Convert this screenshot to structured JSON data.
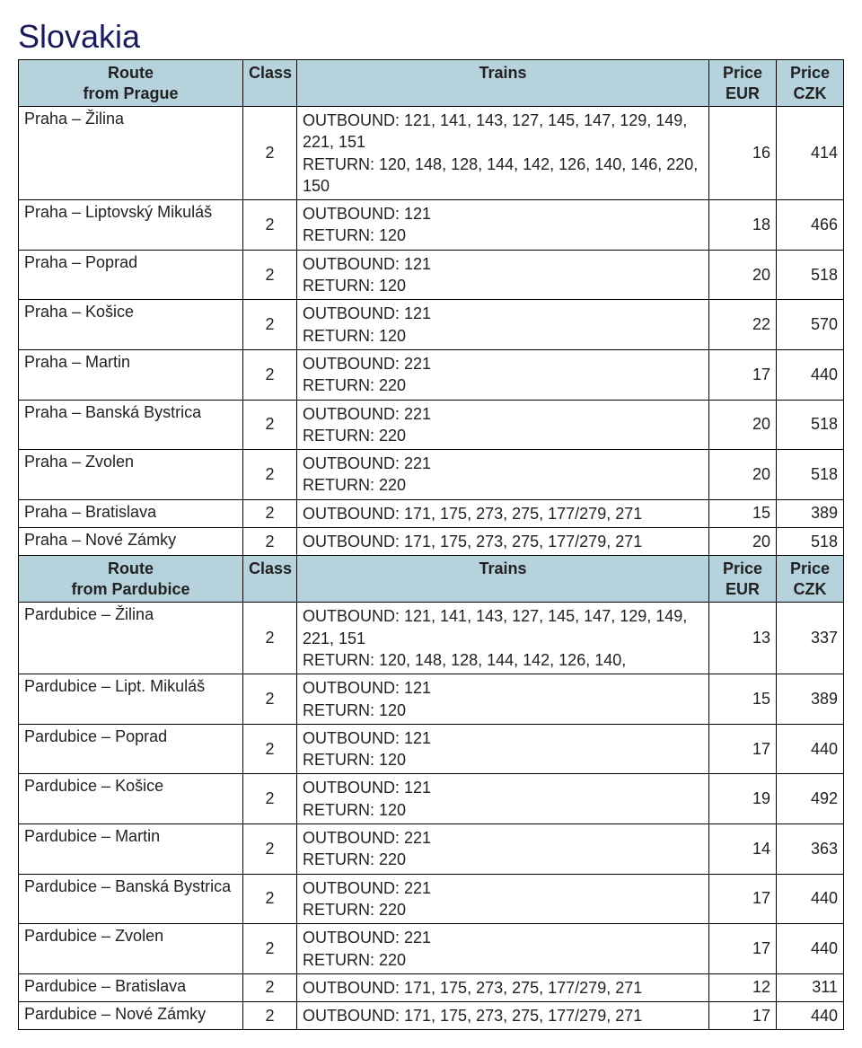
{
  "title": "Slovakia",
  "colors": {
    "header_bg": "#b6d3dd",
    "border": "#000000",
    "title_color": "#1a1a5c",
    "text_color": "#222222",
    "background": "#ffffff"
  },
  "sections": [
    {
      "header": {
        "route": "Route\nfrom Prague",
        "class": "Class",
        "trains": "Trains",
        "eur": "Price\nEUR",
        "czk": "Price\nCZK"
      },
      "rows": [
        {
          "route": "Praha – Žilina",
          "class": "2",
          "trains": "OUTBOUND: 121, 141, 143, 127, 145, 147, 129, 149, 221, 151\nRETURN: 120, 148, 128, 144, 142, 126, 140, 146, 220, 150",
          "eur": "16",
          "czk": "414"
        },
        {
          "route": "Praha – Liptovský Mikuláš",
          "class": "2",
          "trains": "OUTBOUND: 121\nRETURN: 120",
          "eur": "18",
          "czk": "466"
        },
        {
          "route": "Praha – Poprad",
          "class": "2",
          "trains": "OUTBOUND: 121\nRETURN: 120",
          "eur": "20",
          "czk": "518"
        },
        {
          "route": "Praha – Košice",
          "class": "2",
          "trains": "OUTBOUND: 121\nRETURN: 120",
          "eur": "22",
          "czk": "570"
        },
        {
          "route": "Praha – Martin",
          "class": "2",
          "trains": "OUTBOUND: 221\nRETURN: 220",
          "eur": "17",
          "czk": "440"
        },
        {
          "route": "Praha – Banská Bystrica",
          "class": "2",
          "trains": "OUTBOUND: 221\nRETURN: 220",
          "eur": "20",
          "czk": "518"
        },
        {
          "route": "Praha – Zvolen",
          "class": "2",
          "trains": "OUTBOUND: 221\nRETURN: 220",
          "eur": "20",
          "czk": "518"
        },
        {
          "route": "Praha – Bratislava",
          "class": "2",
          "trains": "OUTBOUND: 171, 175, 273, 275, 177/279, 271",
          "eur": "15",
          "czk": "389"
        },
        {
          "route": "Praha – Nové Zámky",
          "class": "2",
          "trains": "OUTBOUND: 171, 175, 273, 275, 177/279, 271",
          "eur": "20",
          "czk": "518"
        }
      ]
    },
    {
      "header": {
        "route": "Route\nfrom Pardubice",
        "class": "Class",
        "trains": "Trains",
        "eur": "Price\nEUR",
        "czk": "Price\nCZK"
      },
      "rows": [
        {
          "route": "Pardubice – Žilina",
          "class": "2",
          "trains": "OUTBOUND: 121, 141, 143, 127, 145, 147, 129, 149, 221, 151\n RETURN: 120, 148, 128, 144, 142, 126, 140,",
          "eur": "13",
          "czk": "337"
        },
        {
          "route": "Pardubice – Lipt. Mikuláš",
          "class": "2",
          "trains": "OUTBOUND: 121\nRETURN: 120",
          "eur": "15",
          "czk": "389"
        },
        {
          "route": "Pardubice – Poprad",
          "class": "2",
          "trains": "OUTBOUND: 121\nRETURN: 120",
          "eur": "17",
          "czk": "440"
        },
        {
          "route": "Pardubice – Košice",
          "class": "2",
          "trains": "OUTBOUND: 121\nRETURN: 120",
          "eur": "19",
          "czk": "492"
        },
        {
          "route": "Pardubice – Martin",
          "class": "2",
          "trains": "OUTBOUND: 221\nRETURN: 220",
          "eur": "14",
          "czk": "363"
        },
        {
          "route": "Pardubice – Banská Bystrica",
          "class": "2",
          "trains": "OUTBOUND: 221\nRETURN: 220",
          "eur": "17",
          "czk": "440"
        },
        {
          "route": "Pardubice – Zvolen",
          "class": "2",
          "trains": "OUTBOUND: 221\nRETURN: 220",
          "eur": "17",
          "czk": "440"
        },
        {
          "route": "Pardubice – Bratislava",
          "class": "2",
          "trains": "OUTBOUND: 171, 175, 273, 275, 177/279, 271",
          "eur": "12",
          "czk": "311"
        },
        {
          "route": "Pardubice – Nové Zámky",
          "class": "2",
          "trains": "OUTBOUND: 171, 175, 273, 275, 177/279, 271",
          "eur": "17",
          "czk": "440"
        }
      ]
    }
  ]
}
